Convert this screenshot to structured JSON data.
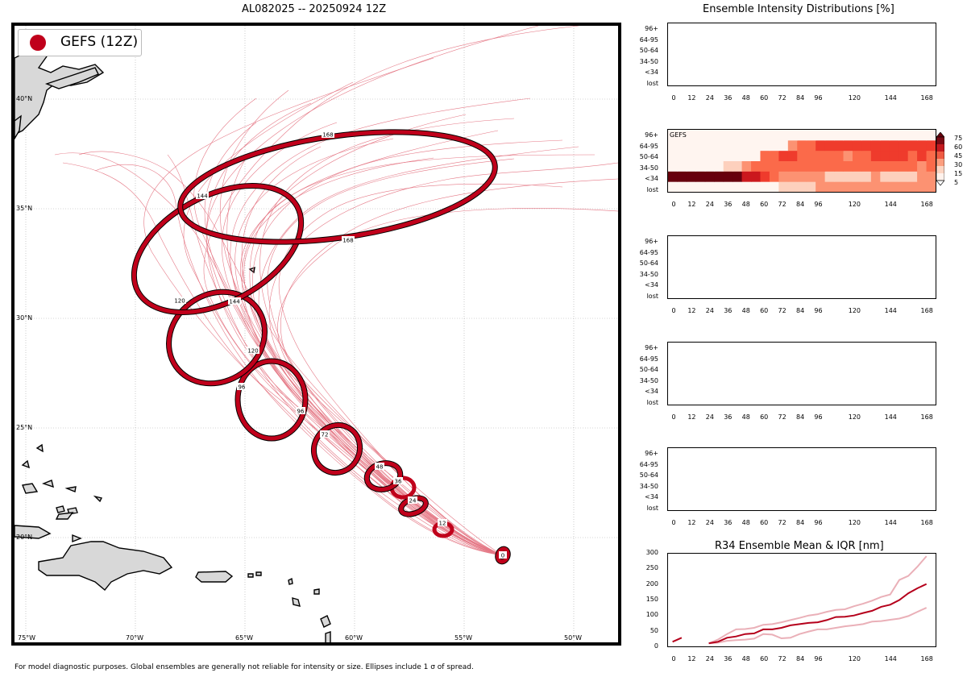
{
  "map": {
    "title": "AL082025 -- 20250924 12Z",
    "legend_label": "GEFS (12Z)",
    "lat_labels": [
      "40°N",
      "35°N",
      "30°N",
      "25°N",
      "20°N"
    ],
    "lon_labels": [
      "75°W",
      "70°W",
      "65°W",
      "60°W",
      "55°W",
      "50°W"
    ],
    "ellipse_labels": [
      "0",
      "12",
      "24",
      "36",
      "48",
      "72",
      "96",
      "96",
      "120",
      "120",
      "144",
      "144",
      "168",
      "168"
    ],
    "colors": {
      "ellipse": "#c0001b",
      "track": "#e06070",
      "land": "#d8d8d8"
    }
  },
  "footnote": "For model diagnostic purposes. Global ensembles are generally not reliable for intensity or size. Ellipses include 1 σ of spread.",
  "intensity": {
    "title": "Ensemble Intensity Distributions [%]",
    "y_categories": [
      "96+",
      "64-95",
      "50-64",
      "34-50",
      "<34",
      "lost"
    ],
    "x_ticks": [
      "0",
      "12",
      "24",
      "36",
      "48",
      "60",
      "72",
      "84",
      "96",
      "120",
      "144",
      "168"
    ],
    "heatmap_label": "GEFS",
    "colorbar_ticks": [
      "75",
      "60",
      "45",
      "30",
      "15",
      "5"
    ]
  },
  "r34": {
    "title": "R34 Ensemble Mean & IQR [nm]",
    "y_ticks": [
      "300",
      "250",
      "200",
      "150",
      "100",
      "50",
      "0"
    ],
    "x_ticks": [
      "0",
      "12",
      "24",
      "36",
      "48",
      "60",
      "72",
      "84",
      "96",
      "120",
      "144",
      "168"
    ]
  },
  "chart_data": [
    {
      "type": "heatmap",
      "title": "Ensemble Intensity Distributions [%]",
      "model": "GEFS",
      "x": [
        0,
        6,
        12,
        18,
        24,
        30,
        36,
        42,
        48,
        54,
        60,
        66,
        72,
        78,
        84,
        90,
        96,
        102,
        108,
        114,
        120,
        126,
        132,
        138,
        144,
        150,
        156,
        162,
        168
      ],
      "y_categories": [
        "lost",
        "<34",
        "34-50",
        "50-64",
        "64-95",
        "96+"
      ],
      "values": [
        [
          0,
          0,
          0,
          0,
          0,
          0,
          0,
          0,
          0,
          0,
          0,
          0,
          5,
          5,
          10,
          10,
          15,
          15,
          15,
          15,
          15,
          15,
          15,
          15,
          15,
          15,
          15,
          15,
          15
        ],
        [
          100,
          100,
          100,
          100,
          100,
          100,
          90,
          100,
          65,
          65,
          45,
          30,
          15,
          15,
          15,
          15,
          15,
          5,
          5,
          5,
          5,
          5,
          15,
          5,
          5,
          5,
          5,
          15,
          15
        ],
        [
          0,
          0,
          0,
          0,
          0,
          0,
          10,
          5,
          20,
          30,
          30,
          35,
          35,
          30,
          30,
          30,
          30,
          30,
          30,
          30,
          30,
          30,
          30,
          30,
          30,
          30,
          30,
          15,
          30
        ],
        [
          0,
          0,
          0,
          0,
          0,
          0,
          0,
          0,
          0,
          0,
          30,
          30,
          45,
          45,
          30,
          30,
          30,
          30,
          30,
          15,
          30,
          30,
          45,
          45,
          45,
          45,
          30,
          45,
          30
        ],
        [
          0,
          0,
          0,
          0,
          0,
          0,
          0,
          0,
          0,
          0,
          0,
          0,
          0,
          15,
          30,
          30,
          45,
          45,
          45,
          45,
          45,
          45,
          45,
          45,
          45,
          45,
          45,
          45,
          45
        ],
        [
          0,
          0,
          0,
          0,
          0,
          0,
          0,
          0,
          0,
          0,
          0,
          0,
          0,
          0,
          0,
          0,
          0,
          0,
          0,
          0,
          0,
          0,
          0,
          0,
          0,
          0,
          0,
          0,
          0
        ]
      ],
      "color_levels": [
        5,
        15,
        30,
        45,
        60,
        75
      ]
    },
    {
      "type": "line",
      "title": "R34 Ensemble Mean & IQR [nm]",
      "ylim": [
        0,
        300
      ],
      "series": [
        {
          "name": "mean",
          "x": [
            0,
            6,
            24,
            30,
            36,
            42,
            48,
            54,
            60,
            66,
            72,
            78,
            84,
            90,
            96,
            102,
            108,
            114,
            120,
            126,
            132,
            138,
            144,
            150,
            156,
            162,
            168
          ],
          "values": [
            15,
            28,
            10,
            15,
            28,
            32,
            40,
            42,
            55,
            55,
            60,
            68,
            72,
            76,
            78,
            85,
            95,
            96,
            100,
            108,
            115,
            128,
            135,
            150,
            172,
            188,
            202
          ]
        },
        {
          "name": "q75",
          "x": [
            24,
            30,
            36,
            42,
            48,
            54,
            60,
            66,
            72,
            78,
            84,
            90,
            96,
            102,
            108,
            114,
            120,
            126,
            132,
            138,
            144,
            150,
            156,
            162,
            168
          ],
          "values": [
            10,
            22,
            40,
            55,
            56,
            60,
            70,
            72,
            78,
            85,
            92,
            100,
            104,
            112,
            118,
            120,
            130,
            138,
            148,
            160,
            168,
            215,
            228,
            258,
            292
          ]
        },
        {
          "name": "q25",
          "x": [
            24,
            30,
            36,
            42,
            48,
            54,
            60,
            66,
            72,
            78,
            84,
            90,
            96,
            102,
            108,
            114,
            120,
            126,
            132,
            138,
            144,
            150,
            156,
            162,
            168
          ],
          "values": [
            10,
            12,
            18,
            20,
            22,
            25,
            40,
            38,
            26,
            28,
            40,
            48,
            55,
            55,
            60,
            65,
            68,
            72,
            80,
            82,
            86,
            90,
            98,
            112,
            125
          ]
        }
      ]
    }
  ]
}
